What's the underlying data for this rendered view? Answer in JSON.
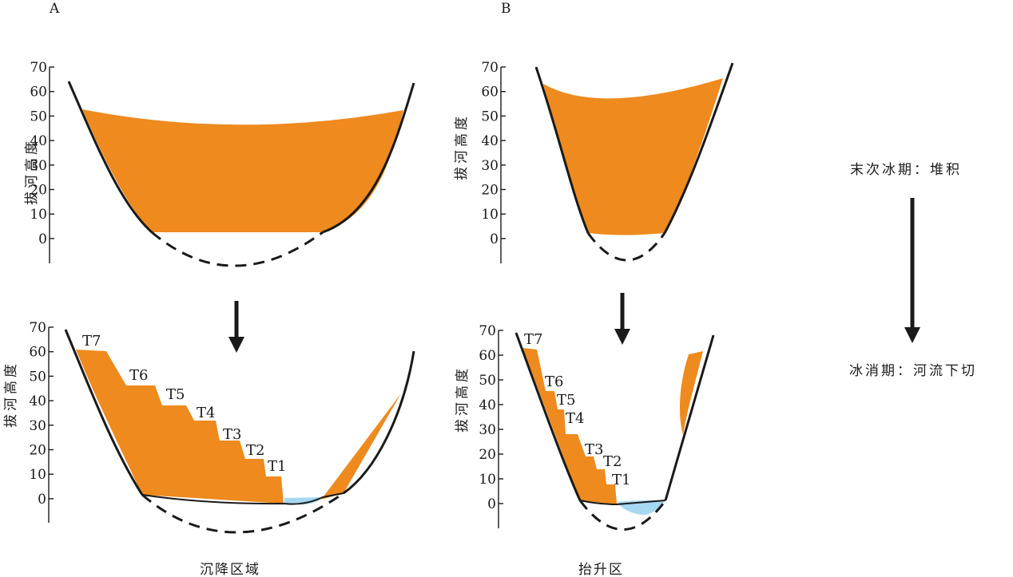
{
  "panels": {
    "a": {
      "label": "A",
      "caption": "沉降区域"
    },
    "b": {
      "label": "B",
      "caption": "抬升区"
    }
  },
  "axis": {
    "ylabel": "拔河高度",
    "ticks": [
      "70",
      "60",
      "50",
      "40",
      "30",
      "20",
      "10",
      "0"
    ]
  },
  "terraces": [
    "T7",
    "T6",
    "T5",
    "T4",
    "T3",
    "T2",
    "T1"
  ],
  "legend": {
    "stage_top": "末次冰期：堆积",
    "stage_bottom": "冰消期：河流下切"
  },
  "colors": {
    "sediment": "#EE8A1E",
    "water": "#A7D8F1",
    "outline": "#1a1a1a"
  }
}
